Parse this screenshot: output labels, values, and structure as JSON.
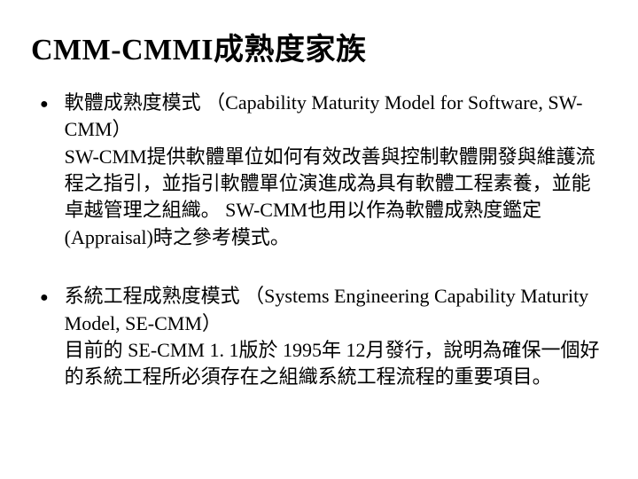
{
  "title": "CMM-CMMI成熟度家族",
  "items": [
    {
      "text": "軟體成熟度模式 （Capability Maturity Model for Software, SW-CMM）\nSW-CMM提供軟體單位如何有效改善與控制軟體開發與維護流程之指引，並指引軟體單位演進成為具有軟體工程素養，並能卓越管理之組織。  SW-CMM也用以作為軟體成熟度鑑定   (Appraisal)時之參考模式。"
    },
    {
      "text": "系統工程成熟度模式 （Systems Engineering Capability Maturity Model, SE-CMM）\n目前的 SE-CMM 1. 1版於 1995年 12月發行，說明為確保一個好的系統工程所必須存在之組織系統工程流程的重要項目。"
    }
  ],
  "styling": {
    "background_color": "#ffffff",
    "text_color": "#000000",
    "title_fontsize": 34,
    "body_fontsize": 22,
    "bullet_marker": "●",
    "font_family": "Times New Roman, SimSun, serif"
  }
}
